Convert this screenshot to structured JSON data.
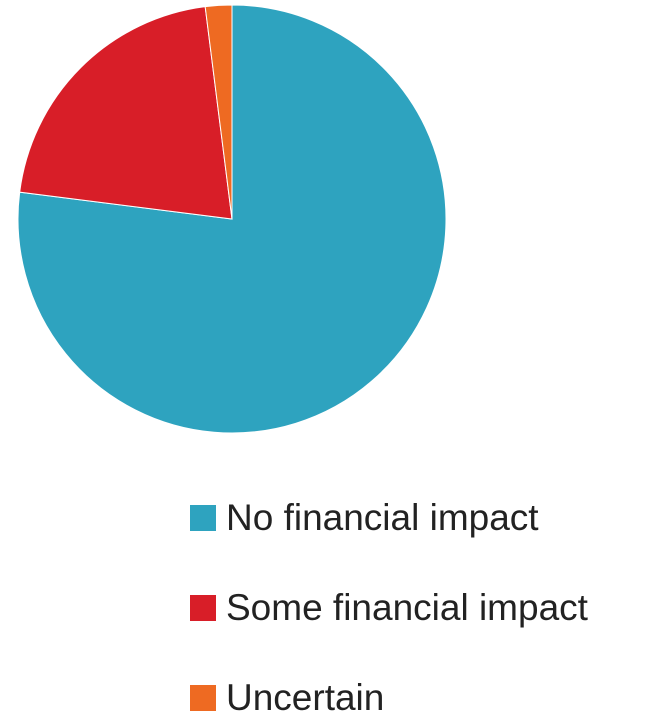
{
  "chart_data": {
    "type": "pie",
    "title": "",
    "legend_position": "bottom-right",
    "slices": [
      {
        "label": "No financial impact",
        "value": 77,
        "color": "#2EA3BF"
      },
      {
        "label": "Some financial impact",
        "value": 21,
        "color": "#D81E28"
      },
      {
        "label": "Uncertain",
        "value": 2,
        "color": "#EE6A22"
      }
    ]
  }
}
